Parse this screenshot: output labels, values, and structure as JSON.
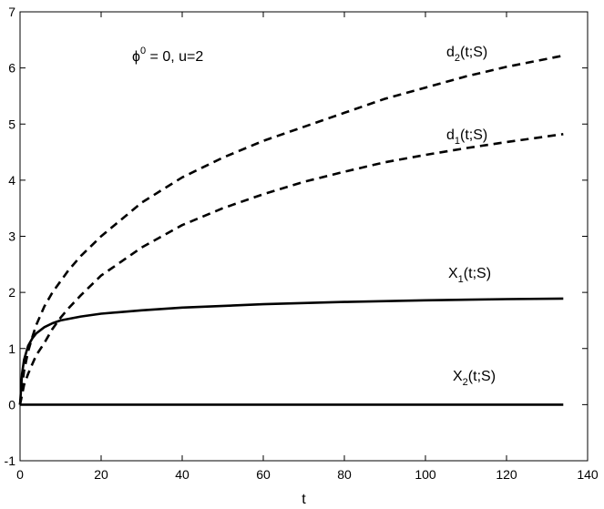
{
  "chart_data": {
    "type": "line",
    "xlabel": "t",
    "ylabel": "",
    "xlim": [
      0,
      140
    ],
    "ylim": [
      -1,
      7
    ],
    "xticks": [
      0,
      20,
      40,
      60,
      80,
      100,
      120,
      140
    ],
    "yticks": [
      -1,
      0,
      1,
      2,
      3,
      4,
      5,
      6,
      7
    ],
    "grid": false,
    "annotation": {
      "phi_symbol": "ϕ",
      "phi_superscript": "0",
      "phi_rest": " = 0,  u=2"
    },
    "series": [
      {
        "label_main": "d",
        "label_sub": "2",
        "label_rest": "(t;S)",
        "style": "dashed",
        "points": [
          [
            0,
            0
          ],
          [
            1,
            0.6
          ],
          [
            2,
            0.95
          ],
          [
            3,
            1.2
          ],
          [
            4,
            1.42
          ],
          [
            6,
            1.75
          ],
          [
            8,
            2.0
          ],
          [
            10,
            2.2
          ],
          [
            12,
            2.4
          ],
          [
            15,
            2.65
          ],
          [
            20,
            3.0
          ],
          [
            25,
            3.3
          ],
          [
            30,
            3.6
          ],
          [
            40,
            4.05
          ],
          [
            50,
            4.4
          ],
          [
            60,
            4.7
          ],
          [
            70,
            4.95
          ],
          [
            80,
            5.2
          ],
          [
            90,
            5.45
          ],
          [
            100,
            5.65
          ],
          [
            110,
            5.85
          ],
          [
            120,
            6.02
          ],
          [
            134,
            6.22
          ]
        ]
      },
      {
        "label_main": "d",
        "label_sub": "1",
        "label_rest": "(t;S)",
        "style": "dashed",
        "points": [
          [
            0,
            0
          ],
          [
            1,
            0.35
          ],
          [
            2,
            0.55
          ],
          [
            3,
            0.72
          ],
          [
            4,
            0.88
          ],
          [
            6,
            1.1
          ],
          [
            8,
            1.35
          ],
          [
            10,
            1.55
          ],
          [
            12,
            1.72
          ],
          [
            15,
            1.95
          ],
          [
            20,
            2.3
          ],
          [
            25,
            2.55
          ],
          [
            30,
            2.8
          ],
          [
            40,
            3.2
          ],
          [
            50,
            3.5
          ],
          [
            60,
            3.75
          ],
          [
            70,
            3.97
          ],
          [
            80,
            4.15
          ],
          [
            90,
            4.32
          ],
          [
            100,
            4.45
          ],
          [
            110,
            4.57
          ],
          [
            120,
            4.68
          ],
          [
            134,
            4.82
          ]
        ]
      },
      {
        "label_main": "X",
        "label_sub": "1",
        "label_rest": "(t;S)",
        "style": "solid",
        "points": [
          [
            0,
            0
          ],
          [
            0.5,
            0.55
          ],
          [
            1,
            0.8
          ],
          [
            2,
            1.05
          ],
          [
            3,
            1.18
          ],
          [
            4,
            1.27
          ],
          [
            6,
            1.38
          ],
          [
            8,
            1.45
          ],
          [
            10,
            1.5
          ],
          [
            15,
            1.57
          ],
          [
            20,
            1.62
          ],
          [
            30,
            1.68
          ],
          [
            40,
            1.73
          ],
          [
            60,
            1.79
          ],
          [
            80,
            1.83
          ],
          [
            100,
            1.86
          ],
          [
            120,
            1.88
          ],
          [
            134,
            1.89
          ]
        ]
      },
      {
        "label_main": "X",
        "label_sub": "2",
        "label_rest": "(t;S)",
        "style": "solid",
        "points": [
          [
            0,
            0
          ],
          [
            134,
            0
          ]
        ]
      }
    ]
  }
}
